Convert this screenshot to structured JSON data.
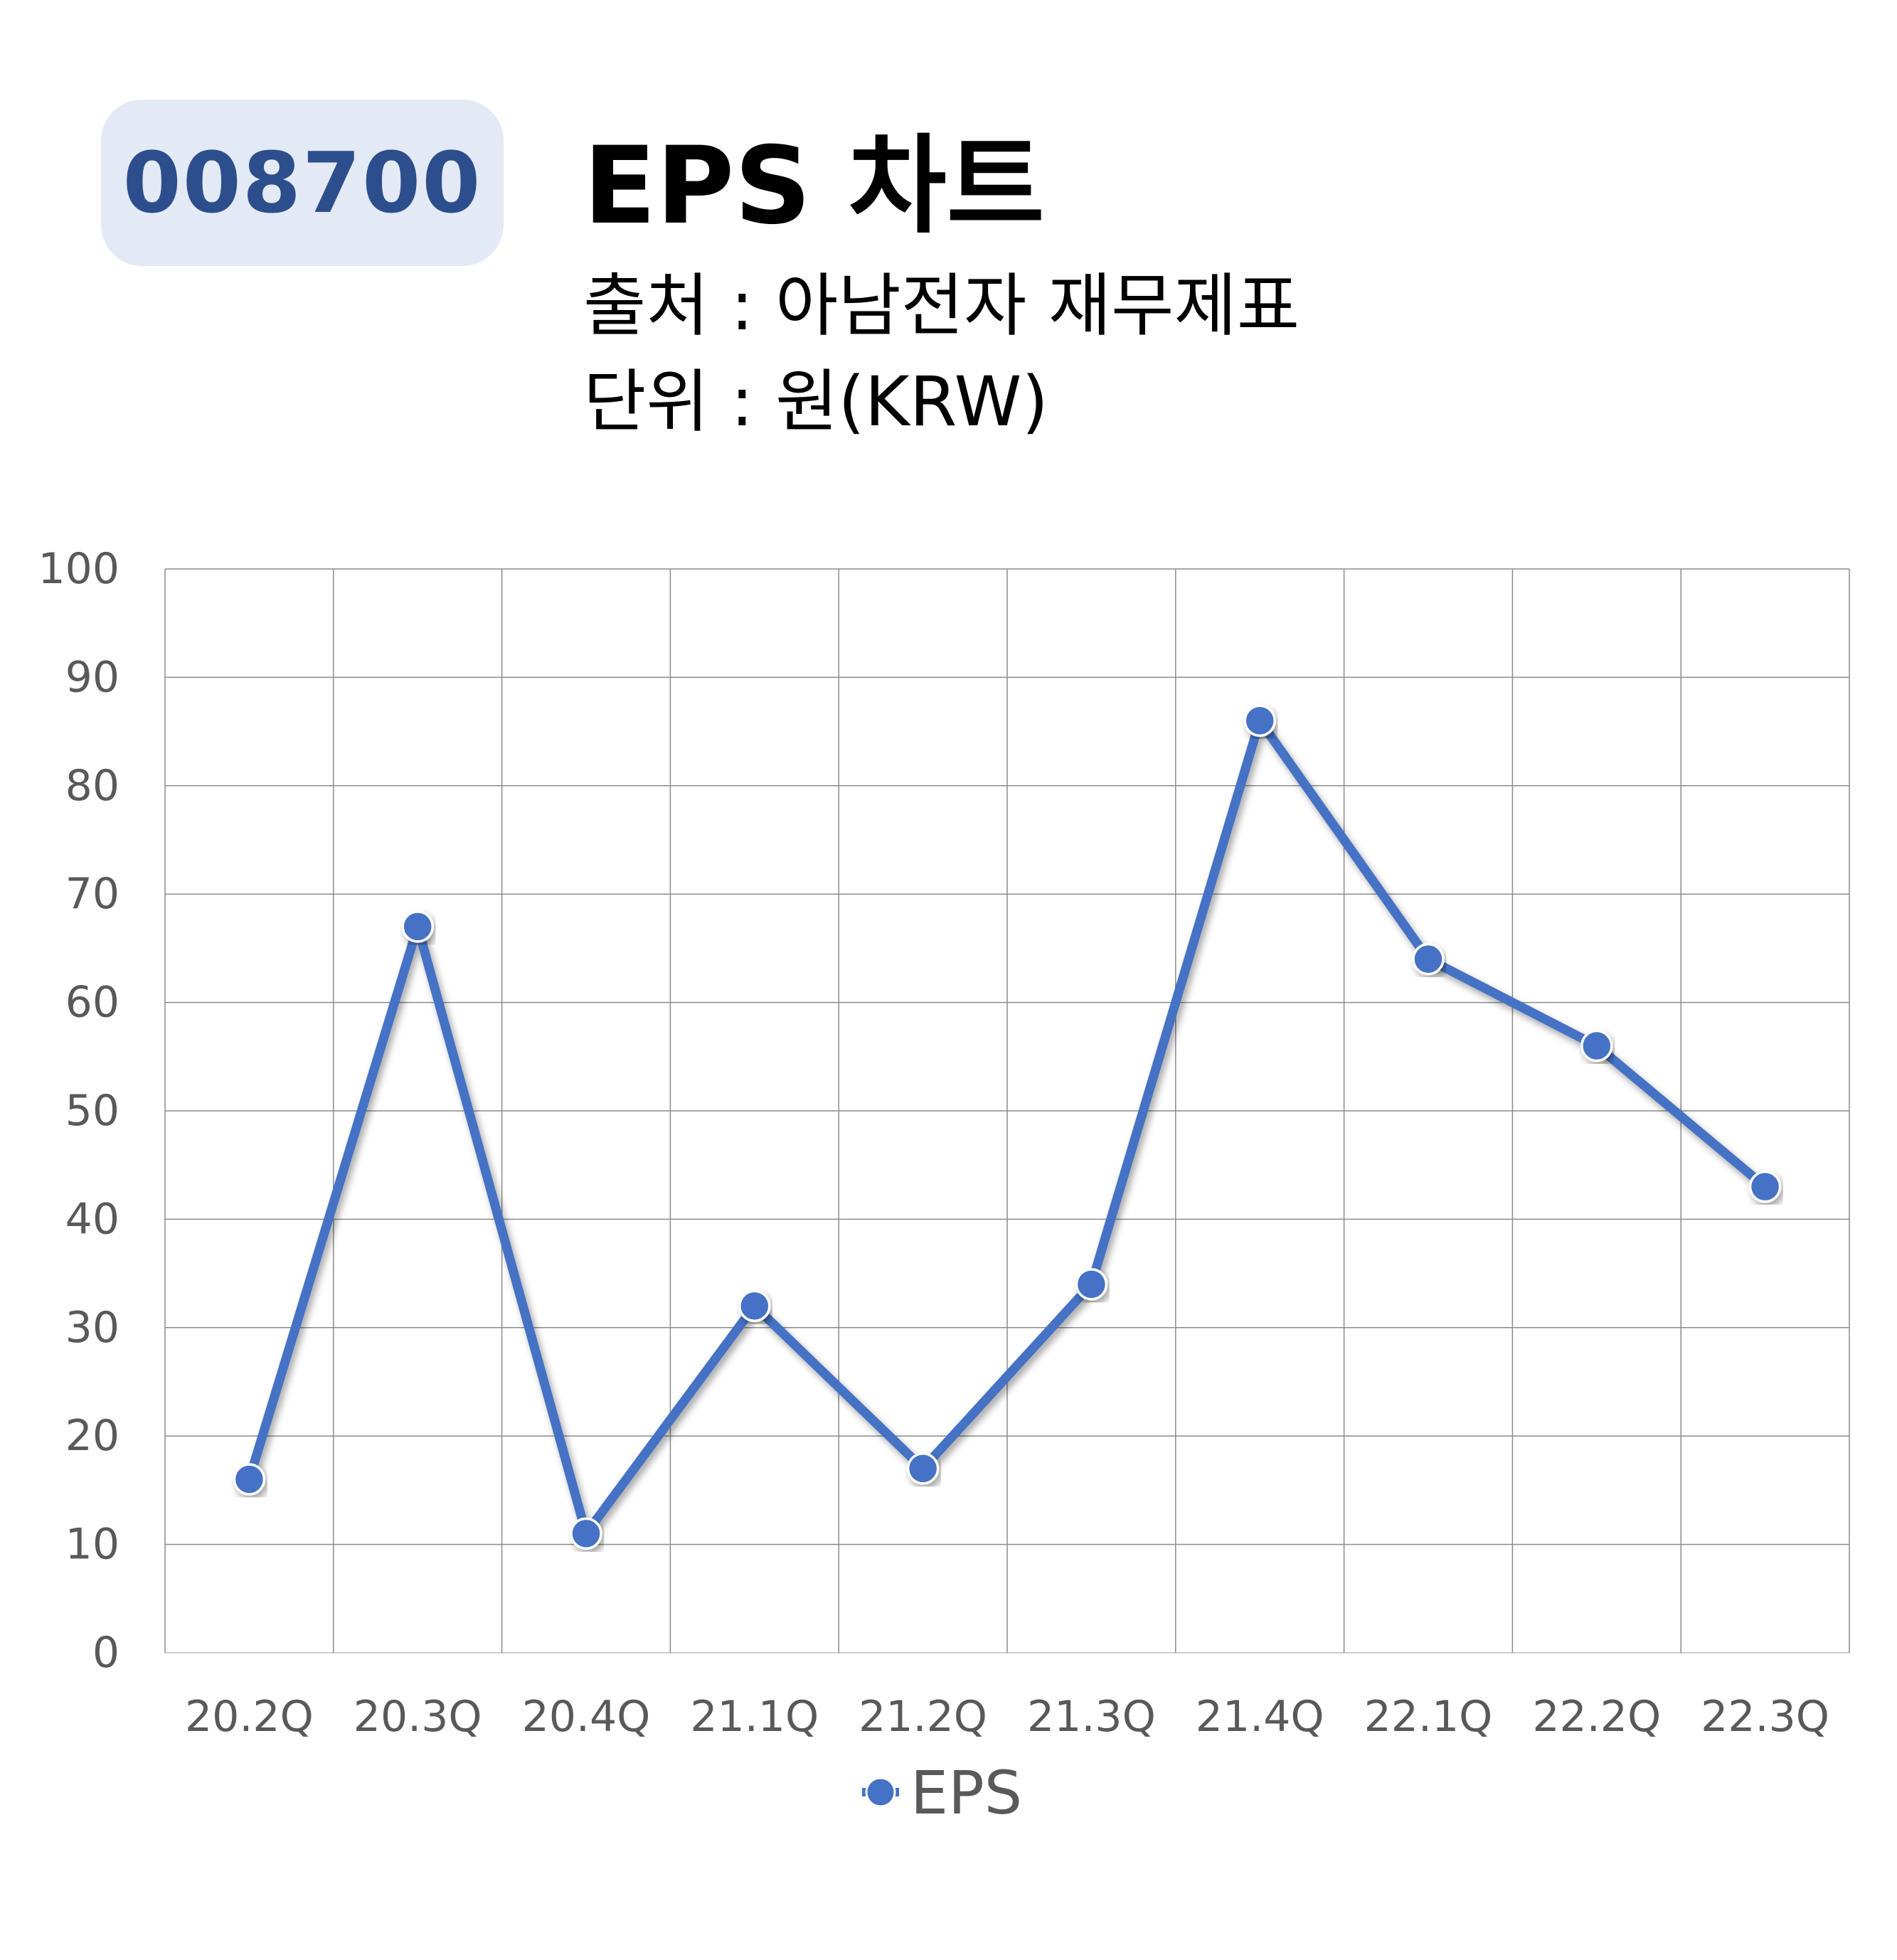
{
  "header": {
    "stock_code": "008700",
    "title": "EPS 차트",
    "source_line": "출처 : 아남전자 재무제표",
    "unit_line": "단위 : 원(KRW)"
  },
  "chart_data": {
    "type": "line",
    "categories": [
      "20.2Q",
      "20.3Q",
      "20.4Q",
      "21.1Q",
      "21.2Q",
      "21.3Q",
      "21.4Q",
      "22.1Q",
      "22.2Q",
      "22.3Q"
    ],
    "series": [
      {
        "name": "EPS",
        "values": [
          16,
          67,
          11,
          32,
          17,
          34,
          86,
          64,
          56,
          43
        ],
        "color": "#4472c4",
        "marker": "circle"
      }
    ],
    "ylim": [
      0,
      100
    ],
    "yticks": [
      0,
      10,
      20,
      30,
      40,
      50,
      60,
      70,
      80,
      90,
      100
    ],
    "grid": true,
    "legend": "bottom-center"
  }
}
